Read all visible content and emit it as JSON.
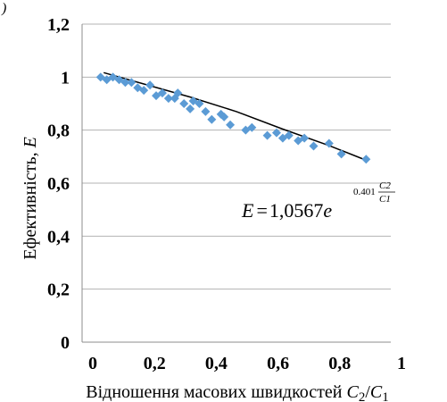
{
  "chart_data": {
    "type": "scatter",
    "title": "",
    "corner_label": ")",
    "xlabel": "Відношення масових швидкостей C2/C1",
    "xlabel_parts": {
      "text": "Відношення масових швидкостей ",
      "v1": "C",
      "s1": "2",
      "sep": "/",
      "v2": "C",
      "s2": "1"
    },
    "ylabel": "Ефективність, E",
    "ylabel_parts": {
      "text": "Ефективність, ",
      "var": "E"
    },
    "x_ticks": [
      "0",
      "0,2",
      "0,4",
      "0,6",
      "0,8",
      "1"
    ],
    "y_ticks": [
      "0",
      "0,2",
      "0,4",
      "0,6",
      "0,8",
      "1",
      "1,2"
    ],
    "xlim": [
      0,
      1
    ],
    "ylim": [
      0,
      1.2
    ],
    "grid": "horizontal",
    "marker_color": "#5b9bd5",
    "trend_color": "#000000",
    "series": [
      {
        "x": [
          0.06,
          0.08,
          0.1,
          0.12,
          0.14,
          0.16,
          0.18,
          0.2,
          0.22,
          0.24,
          0.26,
          0.28,
          0.3,
          0.31,
          0.33,
          0.35,
          0.36,
          0.38,
          0.4,
          0.42,
          0.45,
          0.46,
          0.48,
          0.53,
          0.55,
          0.6,
          0.63,
          0.65,
          0.67,
          0.7,
          0.72,
          0.75,
          0.8,
          0.84,
          0.92
        ],
        "y": [
          1.0,
          0.99,
          1.0,
          0.99,
          0.98,
          0.98,
          0.96,
          0.95,
          0.97,
          0.93,
          0.94,
          0.92,
          0.92,
          0.94,
          0.9,
          0.88,
          0.91,
          0.9,
          0.87,
          0.84,
          0.86,
          0.85,
          0.82,
          0.8,
          0.81,
          0.78,
          0.79,
          0.77,
          0.78,
          0.76,
          0.77,
          0.74,
          0.75,
          0.71,
          0.69
        ]
      }
    ],
    "trendline": {
      "x": [
        0.07,
        0.2,
        0.35,
        0.5,
        0.65,
        0.8,
        0.91
      ],
      "y": [
        1.017,
        0.974,
        0.925,
        0.87,
        0.804,
        0.742,
        0.691
      ]
    },
    "equation": {
      "lhs": "E",
      "eq": "=",
      "coef": "1,0567",
      "base": "e",
      "exp_coef": "0.401",
      "frac_num": "C2",
      "frac_den": "C1"
    }
  }
}
